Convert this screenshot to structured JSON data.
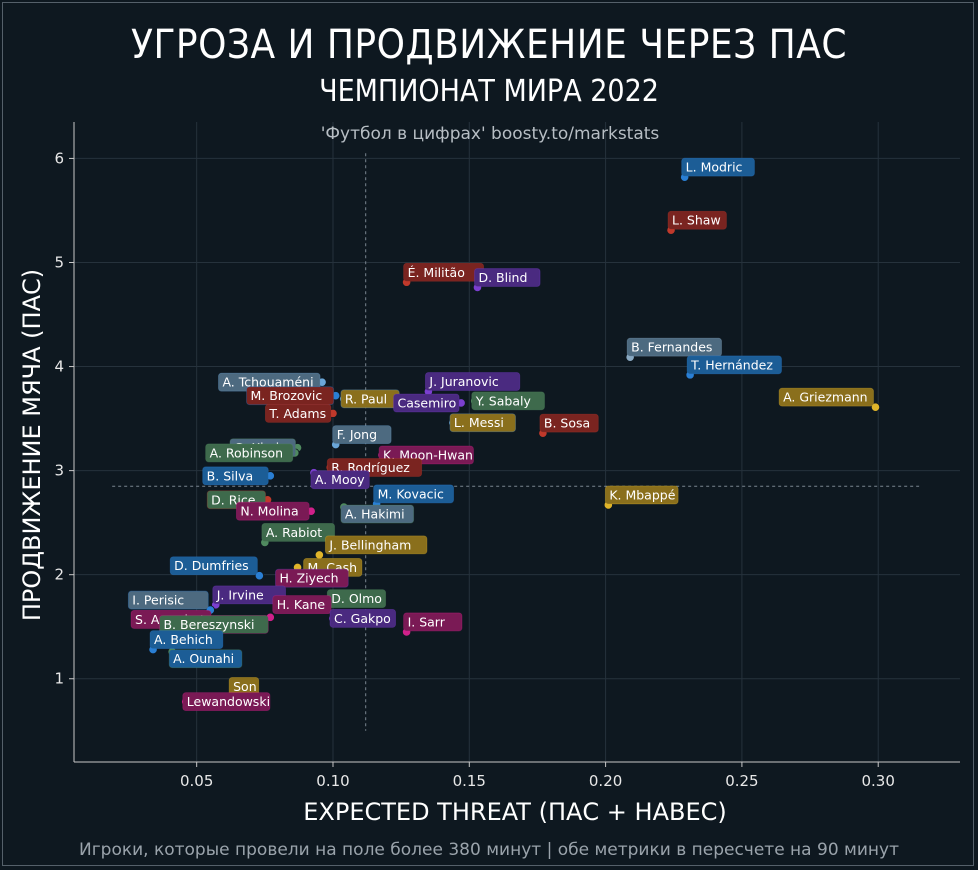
{
  "header": {
    "title": "УГРОЗА И ПРОДВИЖЕНИЕ ЧЕРЕЗ ПАС",
    "subtitle": "ЧЕМПИОНАТ МИРА 2022"
  },
  "footer": {
    "note": "Игроки, которые провели на поле более 380 минут | обе метрики в пересчете на 90 минут"
  },
  "chart_data": {
    "type": "scatter",
    "title": "УГРОЗА И ПРОДВИЖЕНИЕ ЧЕРЕЗ ПАС",
    "subtitle": "ЧЕМПИОНАТ МИРА 2022",
    "watermark": "'Футбол в цифрах' boosty.to/markstats",
    "xlabel": "EXPECTED THREAT (ПАС + НАВЕС)",
    "ylabel": "ПРОДВИЖЕНИЕ МЯЧА (ПАС)",
    "xlim": [
      0.005,
      0.33
    ],
    "ylim": [
      0.2,
      6.35
    ],
    "xticks": [
      0.05,
      0.1,
      0.15,
      0.2,
      0.25,
      0.3
    ],
    "xtick_labels": [
      "0.05",
      "0.10",
      "0.15",
      "0.20",
      "0.25",
      "0.30"
    ],
    "yticks": [
      1,
      2,
      3,
      4,
      5,
      6
    ],
    "ytick_labels": [
      "1",
      "2",
      "3",
      "4",
      "5",
      "6"
    ],
    "grid": true,
    "mean_lines": {
      "x": 0.112,
      "y": 2.85
    },
    "team_colors": {
      "CRO": "#2a7fd4",
      "ENG": "#c0392b",
      "BRA": "#c0392b",
      "NED": "#7b3fd0",
      "POR": "#6e8fa8",
      "MEX": "#2a7fd4",
      "FRA": "#c9a22a",
      "ARG": "#6aa6d8",
      "MAR": "#4f8a5f",
      "SEN": "#d0208a",
      "KOR": "#d0208a",
      "USA": "#c0392b",
      "KSA": "#4f8a5f",
      "SUI": "#4f8a5f"
    },
    "points": [
      {
        "name": "L. Modric",
        "x": 0.229,
        "y": 5.82,
        "color": "#2a7fd4",
        "label_bg": "#1c5d96",
        "dx": 0,
        "dy": -1
      },
      {
        "name": "L. Shaw",
        "x": 0.224,
        "y": 5.31,
        "color": "#c0392b",
        "label_bg": "#7a2420",
        "dx": 0,
        "dy": -1
      },
      {
        "name": "É. Militão",
        "x": 0.127,
        "y": 4.81,
        "color": "#c0392b",
        "label_bg": "#7a2420",
        "dx": 0,
        "dy": -1
      },
      {
        "name": "D. Blind",
        "x": 0.153,
        "y": 4.76,
        "color": "#7b3fd0",
        "label_bg": "#4a2a80",
        "dx": 0,
        "dy": -1
      },
      {
        "name": "B. Fernandes",
        "x": 0.209,
        "y": 4.09,
        "color": "#8aa9c2",
        "label_bg": "#4d6a80",
        "dx": 0,
        "dy": -1
      },
      {
        "name": "T. Hernández",
        "x": 0.231,
        "y": 3.92,
        "color": "#2a7fd4",
        "label_bg": "#1c5d96",
        "dx": 0,
        "dy": -1
      },
      {
        "name": "A. Griezmann",
        "x": 0.299,
        "y": 3.61,
        "color": "#e0b52a",
        "label_bg": "#8a6f1c",
        "dx": -1,
        "dy": -1
      },
      {
        "name": "A. Tchouaméni",
        "x": 0.096,
        "y": 3.85,
        "color": "#6aa6d8",
        "label_bg": "#4d6a80",
        "dx": -1,
        "dy": 0
      },
      {
        "name": "M. Brozovic",
        "x": 0.101,
        "y": 3.72,
        "color": "#2a7fd4",
        "label_bg": "#7a2420",
        "dx": -1,
        "dy": 0
      },
      {
        "name": "J. Juranovic",
        "x": 0.135,
        "y": 3.76,
        "color": "#7b3fd0",
        "label_bg": "#4a2a80",
        "dx": 0,
        "dy": -1
      },
      {
        "name": "R. Paul",
        "x": 0.104,
        "y": 3.69,
        "color": "#6aa6d8",
        "label_bg": "#8a6f1c",
        "dx": 0,
        "dy": 0
      },
      {
        "name": "Y. Sabaly",
        "x": 0.152,
        "y": 3.67,
        "color": "#4f8a5f",
        "label_bg": "#3e6a4c",
        "dx": 0,
        "dy": 0
      },
      {
        "name": "Casemiro",
        "x": 0.147,
        "y": 3.65,
        "color": "#7b3fd0",
        "label_bg": "#4a2a80",
        "dx": -1,
        "dy": 0
      },
      {
        "name": "T. Adams",
        "x": 0.1,
        "y": 3.55,
        "color": "#c0392b",
        "label_bg": "#7a2420",
        "dx": -1,
        "dy": 0
      },
      {
        "name": "L. Messi",
        "x": 0.144,
        "y": 3.46,
        "color": "#6aa6d8",
        "label_bg": "#8a6f1c",
        "dx": 0,
        "dy": 0
      },
      {
        "name": "B. Sosa",
        "x": 0.177,
        "y": 3.36,
        "color": "#c0392b",
        "label_bg": "#7a2420",
        "dx": 0,
        "dy": -1
      },
      {
        "name": "F. Jong",
        "x": 0.101,
        "y": 3.25,
        "color": "#6aa6d8",
        "label_bg": "#4d6a80",
        "dx": 0,
        "dy": -1
      },
      {
        "name": "G. Xhaka",
        "x": 0.087,
        "y": 3.22,
        "color": "#4f8a5f",
        "label_bg": "#4d6a80",
        "dx": -1,
        "dy": 0
      },
      {
        "name": "K. Moon-Hwan",
        "x": 0.118,
        "y": 3.15,
        "color": "#d0208a",
        "label_bg": "#7a1a55",
        "dx": 0,
        "dy": 0
      },
      {
        "name": "A. Robinson",
        "x": 0.086,
        "y": 3.17,
        "color": "#4f8a5f",
        "label_bg": "#3e6a4c",
        "dx": -1,
        "dy": 0
      },
      {
        "name": "R. Rodríguez",
        "x": 0.099,
        "y": 3.03,
        "color": "#c0392b",
        "label_bg": "#7a2420",
        "dx": 0,
        "dy": 0
      },
      {
        "name": "B. Silva",
        "x": 0.077,
        "y": 2.95,
        "color": "#2a7fd4",
        "label_bg": "#1c5d96",
        "dx": -1,
        "dy": 0
      },
      {
        "name": "A. Mooy",
        "x": 0.093,
        "y": 2.98,
        "color": "#7b3fd0",
        "label_bg": "#4a2a80",
        "dx": 0,
        "dy": 1
      },
      {
        "name": "M. Kovacic",
        "x": 0.116,
        "y": 2.68,
        "color": "#2a7fd4",
        "label_bg": "#1c5d96",
        "dx": 0,
        "dy": -1
      },
      {
        "name": "K. Mbappé",
        "x": 0.201,
        "y": 2.67,
        "color": "#e0b52a",
        "label_bg": "#8a6f1c",
        "dx": 0,
        "dy": -1
      },
      {
        "name": "D. Rice",
        "x": 0.076,
        "y": 2.72,
        "color": "#c0392b",
        "label_bg": "#3e6a4c",
        "dx": -1,
        "dy": 0
      },
      {
        "name": "A. Hakimi",
        "x": 0.104,
        "y": 2.65,
        "color": "#4f8a5f",
        "label_bg": "#4d6a80",
        "dx": 0,
        "dy": 1
      },
      {
        "name": "N. Molina",
        "x": 0.092,
        "y": 2.61,
        "color": "#d0208a",
        "label_bg": "#7a1a55",
        "dx": -1,
        "dy": 0
      },
      {
        "name": "A. Rabiot",
        "x": 0.075,
        "y": 2.31,
        "color": "#4f8a5f",
        "label_bg": "#3e6a4c",
        "dx": 0,
        "dy": -1
      },
      {
        "name": "J. Bellingham",
        "x": 0.095,
        "y": 2.19,
        "color": "#e0b52a",
        "label_bg": "#8a6f1c",
        "dx": 1,
        "dy": -1
      },
      {
        "name": "D. Dumfries",
        "x": 0.073,
        "y": 1.99,
        "color": "#2a7fd4",
        "label_bg": "#1c5d96",
        "dx": -1,
        "dy": -1
      },
      {
        "name": "M. Cash",
        "x": 0.087,
        "y": 2.07,
        "color": "#e0b52a",
        "label_bg": "#8a6f1c",
        "dx": 1,
        "dy": 0
      },
      {
        "name": "H. Ziyech",
        "x": 0.08,
        "y": 1.87,
        "color": "#7b3fd0",
        "label_bg": "#7a1a55",
        "dx": 0,
        "dy": -1
      },
      {
        "name": "J. Irvine",
        "x": 0.057,
        "y": 1.71,
        "color": "#7b3fd0",
        "label_bg": "#4a2a80",
        "dx": 0,
        "dy": -1
      },
      {
        "name": "D. Olmo",
        "x": 0.099,
        "y": 1.77,
        "color": "#4f8a5f",
        "label_bg": "#3e6a4c",
        "dx": 0,
        "dy": 0
      },
      {
        "name": "H. Kane",
        "x": 0.079,
        "y": 1.78,
        "color": "#d0208a",
        "label_bg": "#7a1a55",
        "dx": 0,
        "dy": 1
      },
      {
        "name": "I. Perisic",
        "x": 0.055,
        "y": 1.66,
        "color": "#2a7fd4",
        "label_bg": "#4d6a80",
        "dx": -1,
        "dy": -1
      },
      {
        "name": "C. Gakpo",
        "x": 0.1,
        "y": 1.58,
        "color": "#7b3fd0",
        "label_bg": "#4a2a80",
        "dx": 0,
        "dy": 0
      },
      {
        "name": "S. Amrabat",
        "x": 0.056,
        "y": 1.57,
        "color": "#d0208a",
        "label_bg": "#7a1a55",
        "dx": -1,
        "dy": 0
      },
      {
        "name": "B. Bereszynski",
        "x": 0.077,
        "y": 1.59,
        "color": "#d0208a",
        "label_bg": "#3e6a4c",
        "dx": -1,
        "dy": 1
      },
      {
        "name": "I. Sarr",
        "x": 0.127,
        "y": 1.45,
        "color": "#d0208a",
        "label_bg": "#7a1a55",
        "dx": 0,
        "dy": -1
      },
      {
        "name": "A. Behich",
        "x": 0.034,
        "y": 1.28,
        "color": "#2a7fd4",
        "label_bg": "#1c5d96",
        "dx": 0,
        "dy": -1
      },
      {
        "name": "A. Ounahi",
        "x": 0.041,
        "y": 1.26,
        "color": "#4f8a5f",
        "label_bg": "#1c5d96",
        "dx": 0,
        "dy": 1
      },
      {
        "name": "Son",
        "x": 0.063,
        "y": 0.83,
        "color": "#e0b52a",
        "label_bg": "#8a6f1c",
        "dx": 0,
        "dy": -1
      },
      {
        "name": "Lewandowski",
        "x": 0.046,
        "y": 0.78,
        "color": "#d0208a",
        "label_bg": "#7a1a55",
        "dx": 0,
        "dy": 0
      }
    ]
  }
}
